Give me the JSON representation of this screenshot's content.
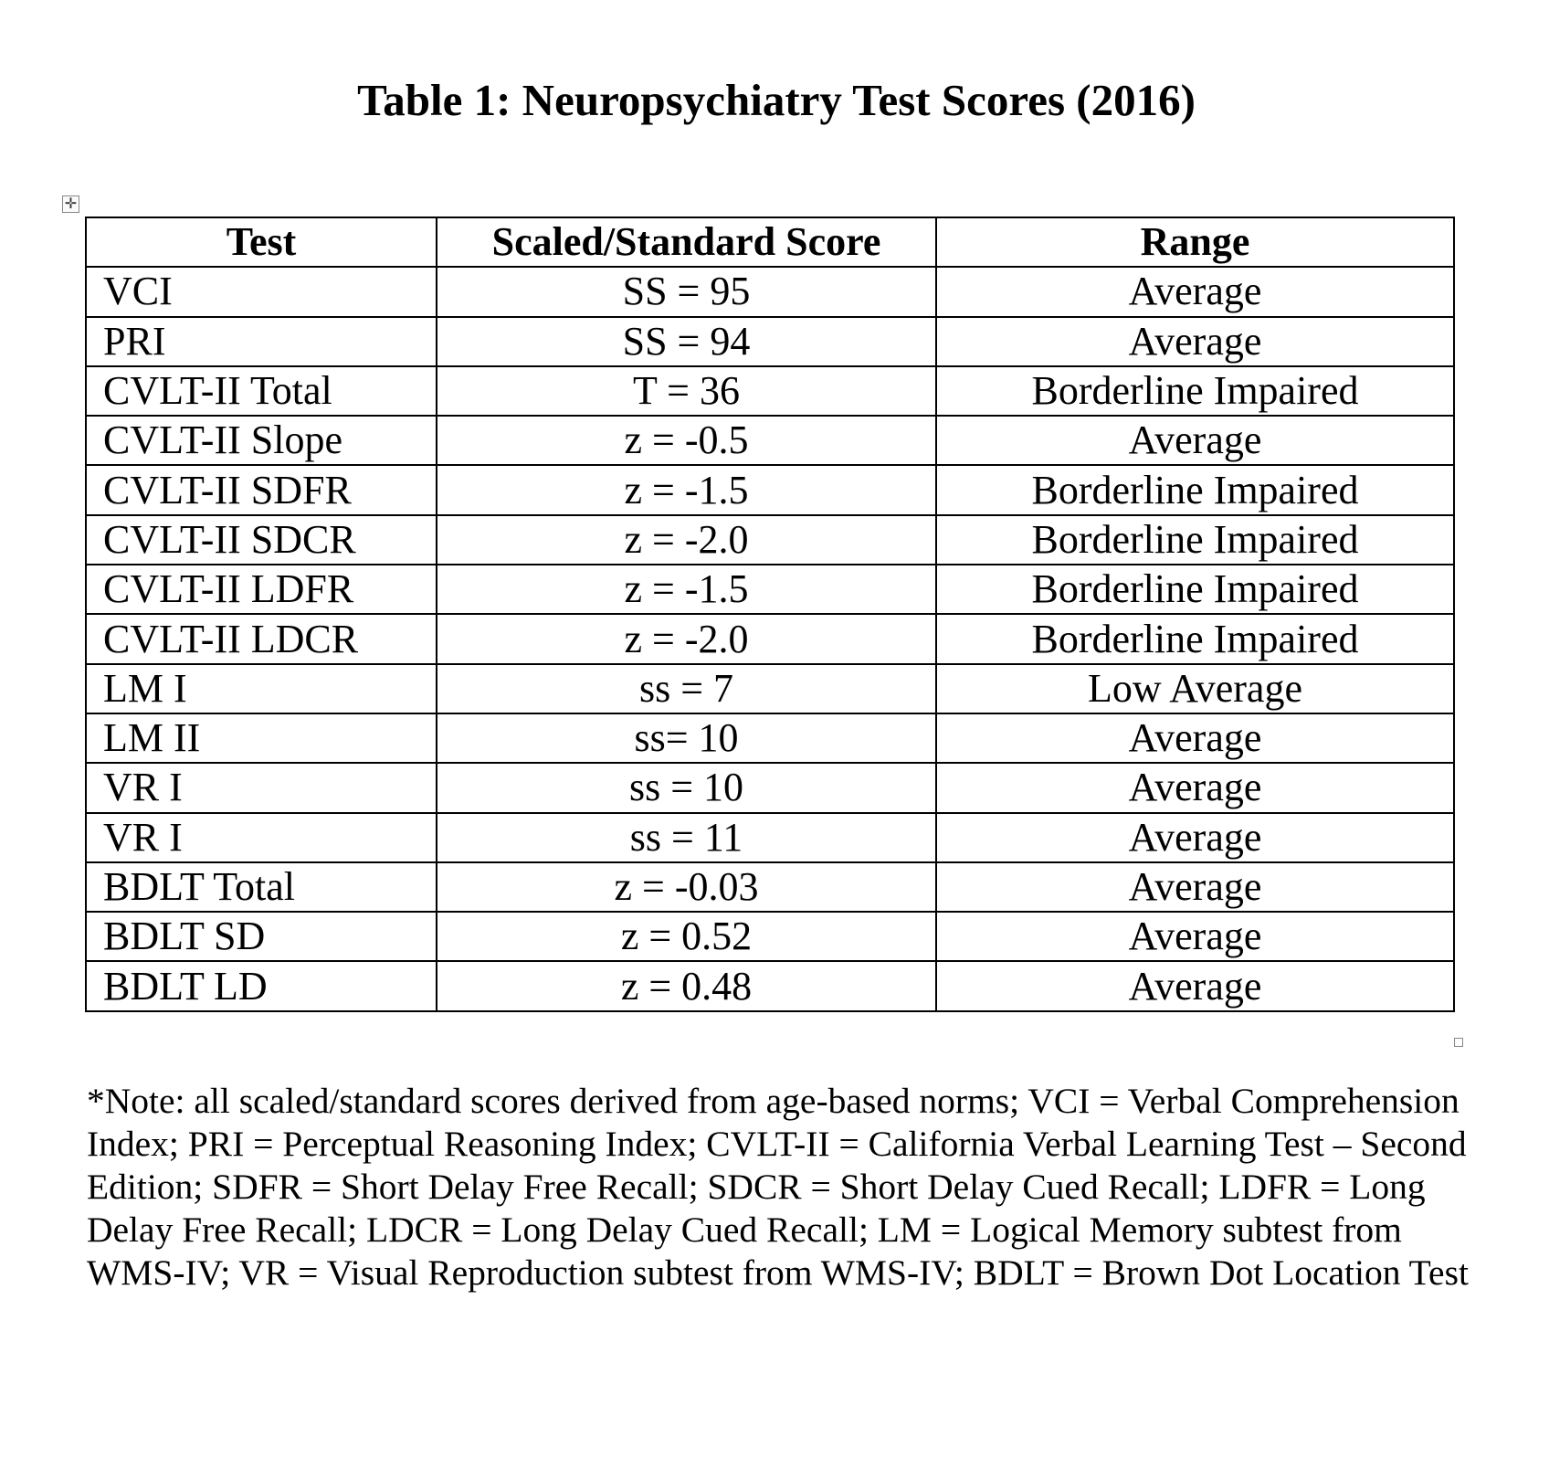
{
  "title": "Table 1: Neuropsychiatry Test Scores (2016)",
  "table": {
    "headers": [
      "Test",
      "Scaled/Standard Score",
      "Range"
    ],
    "rows": [
      [
        "VCI",
        "SS = 95",
        "Average"
      ],
      [
        "PRI",
        "SS = 94",
        "Average"
      ],
      [
        "CVLT-II Total",
        "T = 36",
        "Borderline Impaired"
      ],
      [
        "CVLT-II Slope",
        "z = -0.5",
        "Average"
      ],
      [
        "CVLT-II SDFR",
        "z = -1.5",
        "Borderline Impaired"
      ],
      [
        "CVLT-II SDCR",
        "z = -2.0",
        "Borderline Impaired"
      ],
      [
        "CVLT-II LDFR",
        "z = -1.5",
        "Borderline Impaired"
      ],
      [
        "CVLT-II LDCR",
        "z = -2.0",
        "Borderline Impaired"
      ],
      [
        "LM I",
        "ss = 7",
        "Low Average"
      ],
      [
        "LM II",
        "ss= 10",
        "Average"
      ],
      [
        "VR I",
        "ss = 10",
        "Average"
      ],
      [
        "VR I",
        "ss = 11",
        "Average"
      ],
      [
        "BDLT Total",
        "z = -0.03",
        "Average"
      ],
      [
        "BDLT SD",
        "z = 0.52",
        "Average"
      ],
      [
        "BDLT LD",
        "z = 0.48",
        "Average"
      ]
    ]
  },
  "note_lines": [
    "*Note: all scaled/standard scores derived from age-based norms; VCI = Verbal Comprehension",
    "Index; PRI = Perceptual Reasoning Index; CVLT-II = California Verbal Learning Test – Second",
    "Edition; SDFR = Short Delay Free Recall; SDCR = Short Delay Cued Recall; LDFR = Long",
    "Delay Free Recall; LDCR = Long Delay Cued Recall; LM = Logical Memory subtest from",
    "WMS-IV; VR = Visual Reproduction subtest from WMS-IV; BDLT = Brown Dot Location Test"
  ],
  "icons": {
    "move_handle": "table-move-icon",
    "resize_handle": "table-resize-icon"
  }
}
